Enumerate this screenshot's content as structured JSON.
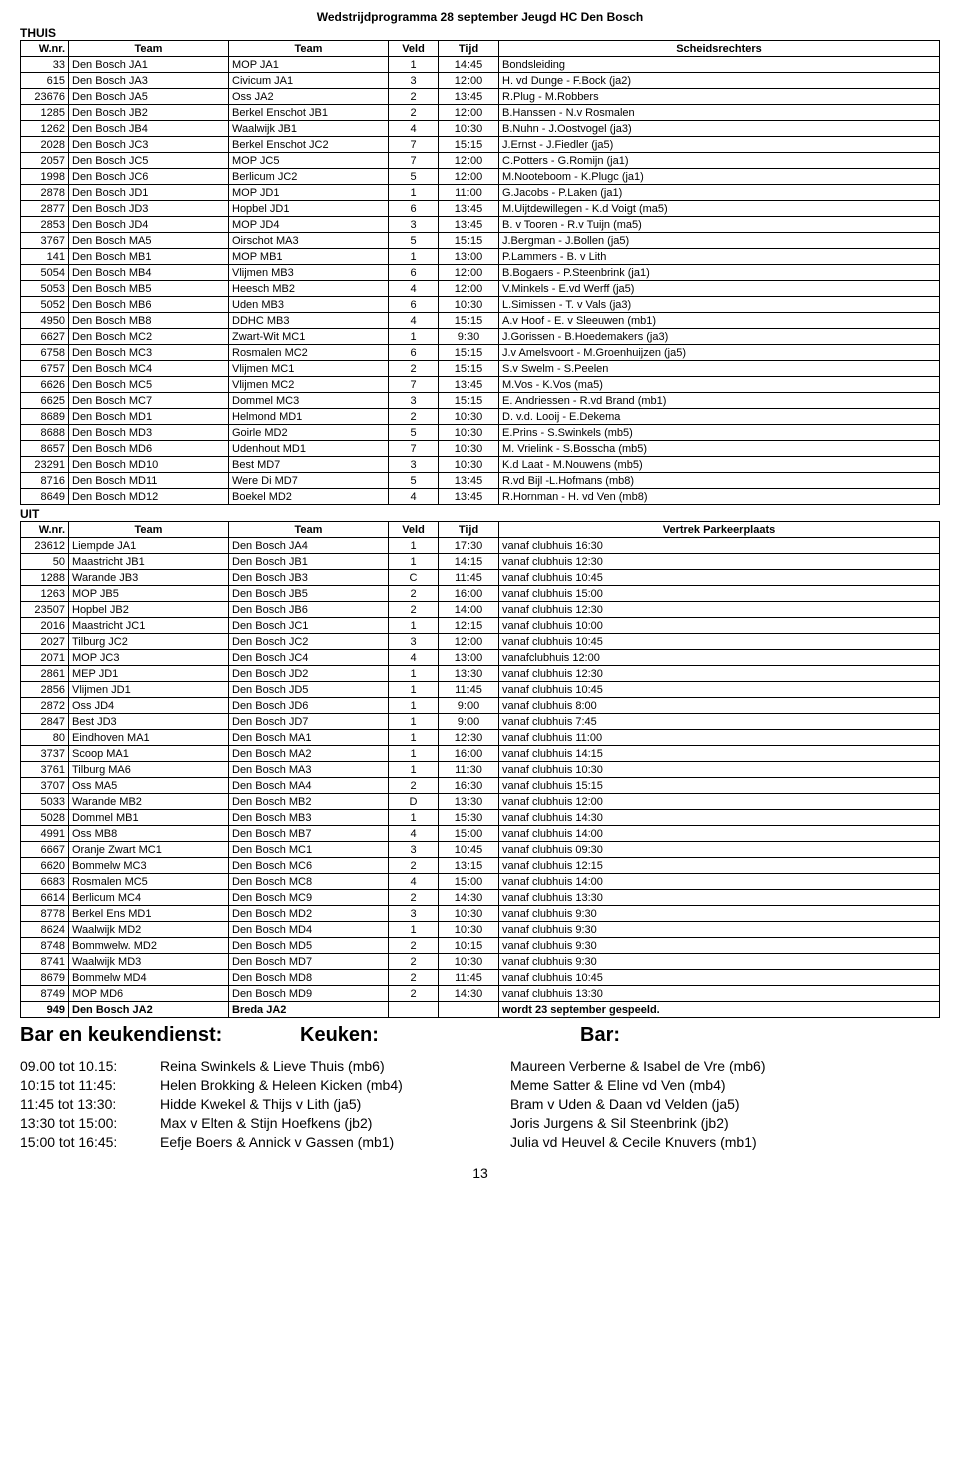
{
  "title": "Wedstrijdprogramma 28 september Jeugd HC Den Bosch",
  "thuis_label": "THUIS",
  "uit_label": "UIT",
  "thuis_headers": [
    "W.nr.",
    "Team",
    "Team",
    "Veld",
    "Tijd",
    "Scheidsrechters"
  ],
  "uit_headers": [
    "W.nr.",
    "Team",
    "Team",
    "Veld",
    "Tijd",
    "Vertrek Parkeerplaats"
  ],
  "thuis_rows": [
    [
      "33",
      "Den Bosch JA1",
      "MOP JA1",
      "1",
      "14:45",
      "Bondsleiding"
    ],
    [
      "615",
      "Den Bosch JA3",
      "Civicum JA1",
      "3",
      "12:00",
      "H. vd Dunge - F.Bock (ja2)"
    ],
    [
      "23676",
      "Den Bosch JA5",
      "Oss JA2",
      "2",
      "13:45",
      "R.Plug - M.Robbers"
    ],
    [
      "1285",
      "Den Bosch JB2",
      "Berkel Enschot JB1",
      "2",
      "12:00",
      "B.Hanssen - N.v Rosmalen"
    ],
    [
      "1262",
      "Den Bosch JB4",
      "Waalwijk JB1",
      "4",
      "10:30",
      "B.Nuhn - J.Oostvogel (ja3)"
    ],
    [
      "2028",
      "Den Bosch JC3",
      "Berkel Enschot JC2",
      "7",
      "15:15",
      "J.Ernst - J.Fiedler (ja5)"
    ],
    [
      "2057",
      "Den Bosch JC5",
      "MOP JC5",
      "7",
      "12:00",
      "C.Potters - G.Romijn (ja1)"
    ],
    [
      "1998",
      "Den Bosch JC6",
      "Berlicum JC2",
      "5",
      "12:00",
      "M.Nooteboom - K.Plugc (ja1)"
    ],
    [
      "2878",
      "Den Bosch JD1",
      "MOP JD1",
      "1",
      "11:00",
      "G.Jacobs - P.Laken (ja1)"
    ],
    [
      "2877",
      "Den Bosch JD3",
      "Hopbel JD1",
      "6",
      "13:45",
      "M.Uijtdewillegen - K.d Voigt (ma5)"
    ],
    [
      "2853",
      "Den Bosch JD4",
      "MOP JD4",
      "3",
      "13:45",
      "B. v Tooren - R.v Tuijn (ma5)"
    ],
    [
      "3767",
      "Den Bosch MA5",
      "Oirschot MA3",
      "5",
      "15:15",
      "J.Bergman - J.Bollen (ja5)"
    ],
    [
      "141",
      "Den Bosch MB1",
      "MOP MB1",
      "1",
      "13:00",
      "P.Lammers - B. v Lith"
    ],
    [
      "5054",
      "Den Bosch MB4",
      "Vlijmen MB3",
      "6",
      "12:00",
      "B.Bogaers - P.Steenbrink (ja1)"
    ],
    [
      "5053",
      "Den Bosch MB5",
      "Heesch MB2",
      "4",
      "12:00",
      "V.Minkels - E.vd Werff (ja5)"
    ],
    [
      "5052",
      "Den Bosch MB6",
      "Uden MB3",
      "6",
      "10:30",
      "L.Simissen - T. v Vals (ja3)"
    ],
    [
      "4950",
      "Den Bosch MB8",
      "DDHC MB3",
      "4",
      "15:15",
      "A.v Hoof - E. v Sleeuwen (mb1)"
    ],
    [
      "6627",
      "Den Bosch MC2",
      "Zwart-Wit MC1",
      "1",
      "9:30",
      "J.Gorissen - B.Hoedemakers (ja3)"
    ],
    [
      "6758",
      "Den Bosch MC3",
      "Rosmalen MC2",
      "6",
      "15:15",
      "J.v  Amelsvoort - M.Groenhuijzen (ja5)"
    ],
    [
      "6757",
      "Den Bosch MC4",
      "Vlijmen MC1",
      "2",
      "15:15",
      "S.v Swelm - S.Peelen"
    ],
    [
      "6626",
      "Den Bosch MC5",
      "Vlijmen MC2",
      "7",
      "13:45",
      "M.Vos - K.Vos (ma5)"
    ],
    [
      "6625",
      "Den Bosch MC7",
      "Dommel MC3",
      "3",
      "15:15",
      "E. Andriessen - R.vd Brand (mb1)"
    ],
    [
      "8689",
      "Den Bosch MD1",
      "Helmond MD1",
      "2",
      "10:30",
      "D. v.d. Looij - E.Dekema"
    ],
    [
      "8688",
      "Den Bosch MD3",
      "Goirle MD2",
      "5",
      "10:30",
      "E.Prins - S.Swinkels (mb5)"
    ],
    [
      "8657",
      "Den Bosch MD6",
      "Udenhout MD1",
      "7",
      "10:30",
      "M. Vrielink - S.Bosscha (mb5)"
    ],
    [
      "23291",
      "Den Bosch MD10",
      "Best MD7",
      "3",
      "10:30",
      "K.d Laat - M.Nouwens (mb5)"
    ],
    [
      "8716",
      "Den Bosch MD11",
      "Were Di MD7",
      "5",
      "13:45",
      "R.vd Bijl -L.Hofmans (mb8)"
    ],
    [
      "8649",
      "Den Bosch MD12",
      "Boekel MD2",
      "4",
      "13:45",
      "R.Hornman - H. vd Ven (mb8)"
    ]
  ],
  "uit_rows": [
    [
      "23612",
      "Liempde JA1",
      "Den Bosch JA4",
      "1",
      "17:30",
      "vanaf clubhuis 16:30"
    ],
    [
      "50",
      "Maastricht JB1",
      "Den Bosch JB1",
      "1",
      "14:15",
      "vanaf clubhuis 12:30"
    ],
    [
      "1288",
      "Warande JB3",
      "Den Bosch JB3",
      "C",
      "11:45",
      "vanaf clubhuis 10:45"
    ],
    [
      "1263",
      "MOP JB5",
      "Den Bosch JB5",
      "2",
      "16:00",
      "vanaf clubhuis 15:00"
    ],
    [
      "23507",
      "Hopbel JB2",
      "Den Bosch JB6",
      "2",
      "14:00",
      "vanaf clubhuis 12:30"
    ],
    [
      "2016",
      "Maastricht JC1",
      "Den Bosch JC1",
      "1",
      "12:15",
      "vanaf clubhuis 10:00"
    ],
    [
      "2027",
      "Tilburg JC2",
      "Den Bosch JC2",
      "3",
      "12:00",
      "vanaf clubhuis 10:45"
    ],
    [
      "2071",
      "MOP JC3",
      "Den Bosch JC4",
      "4",
      "13:00",
      "vanafclubhuis 12:00"
    ],
    [
      "2861",
      "MEP JD1",
      "Den Bosch JD2",
      "1",
      "13:30",
      "vanaf clubhuis 12:30"
    ],
    [
      "2856",
      "Vlijmen JD1",
      "Den Bosch JD5",
      "1",
      "11:45",
      "vanaf clubhuis 10:45"
    ],
    [
      "2872",
      "Oss JD4",
      "Den Bosch JD6",
      "1",
      "9:00",
      "vanaf clubhuis 8:00"
    ],
    [
      "2847",
      "Best JD3",
      "Den Bosch JD7",
      "1",
      "9:00",
      "vanaf clubhuis 7:45"
    ],
    [
      "80",
      "Eindhoven MA1",
      "Den Bosch MA1",
      "1",
      "12:30",
      "vanaf clubhuis 11:00"
    ],
    [
      "3737",
      "Scoop MA1",
      "Den Bosch MA2",
      "1",
      "16:00",
      "vanaf clubhuis 14:15"
    ],
    [
      "3761",
      "Tilburg MA6",
      "Den Bosch MA3",
      "1",
      "11:30",
      "vanaf clubhuis 10:30"
    ],
    [
      "3707",
      "Oss MA5",
      "Den Bosch MA4",
      "2",
      "16:30",
      "vanaf clubhuis 15:15"
    ],
    [
      "5033",
      "Warande MB2",
      "Den Bosch MB2",
      "D",
      "13:30",
      "vanaf clubhuis 12:00"
    ],
    [
      "5028",
      "Dommel MB1",
      "Den Bosch MB3",
      "1",
      "15:30",
      "vanaf clubhuis 14:30"
    ],
    [
      "4991",
      "Oss MB8",
      "Den Bosch MB7",
      "4",
      "15:00",
      "vanaf clubhuis 14:00"
    ],
    [
      "6667",
      "Oranje Zwart MC1",
      "Den Bosch MC1",
      "3",
      "10:45",
      "vanaf clubhuis 09:30"
    ],
    [
      "6620",
      "Bommelw MC3",
      "Den Bosch MC6",
      "2",
      "13:15",
      "vanaf clubhuis 12:15"
    ],
    [
      "6683",
      "Rosmalen MC5",
      "Den Bosch MC8",
      "4",
      "15:00",
      "vanaf clubhuis 14:00"
    ],
    [
      "6614",
      "Berlicum MC4",
      "Den Bosch MC9",
      "2",
      "14:30",
      "vanaf clubhuis 13:30"
    ],
    [
      "8778",
      "Berkel Ens MD1",
      "Den Bosch MD2",
      "3",
      "10:30",
      "vanaf clubhuis 9:30"
    ],
    [
      "8624",
      "Waalwijk MD2",
      "Den Bosch MD4",
      "1",
      "10:30",
      "vanaf clubhuis 9:30"
    ],
    [
      "8748",
      "Bommwelw. MD2",
      "Den Bosch MD5",
      "2",
      "10:15",
      "vanaf clubhuis 9:30"
    ],
    [
      "8741",
      "Waalwijk MD3",
      "Den Bosch MD7",
      "2",
      "10:30",
      "vanaf clubhuis 9:30"
    ],
    [
      "8679",
      "Bommelw MD4",
      "Den Bosch MD8",
      "2",
      "11:45",
      "vanaf clubhuis 10:45"
    ],
    [
      "8749",
      "MOP MD6",
      "Den Bosch MD9",
      "2",
      "14:30",
      "vanaf clubhuis 13:30"
    ],
    [
      "949",
      "Den Bosch JA2",
      "Breda JA2",
      "",
      "",
      "wordt 23 september gespeeld."
    ]
  ],
  "bar_labels": {
    "bar_keuken": "Bar en keukendienst:",
    "keuken": "Keuken:",
    "bar": "Bar:"
  },
  "shifts": [
    [
      "09.00 tot 10.15:",
      "Reina Swinkels & Lieve Thuis (mb6)",
      "Maureen Verberne & Isabel de Vre (mb6)"
    ],
    [
      "10:15 tot 11:45:",
      "Helen Brokking & Heleen Kicken (mb4)",
      "Meme Satter & Eline vd Ven (mb4)"
    ],
    [
      "11:45 tot 13:30:",
      "Hidde Kwekel & Thijs v Lith (ja5)",
      "Bram v Uden & Daan vd Velden (ja5)"
    ],
    [
      "13:30 tot 15:00:",
      "Max v Elten & Stijn Hoefkens (jb2)",
      "Joris Jurgens & Sil Steenbrink (jb2)"
    ],
    [
      "15:00 tot 16:45:",
      "Eefje Boers & Annick v Gassen (mb1)",
      "Julia vd Heuvel & Cecile Knuvers (mb1)"
    ]
  ],
  "page_number": "13"
}
